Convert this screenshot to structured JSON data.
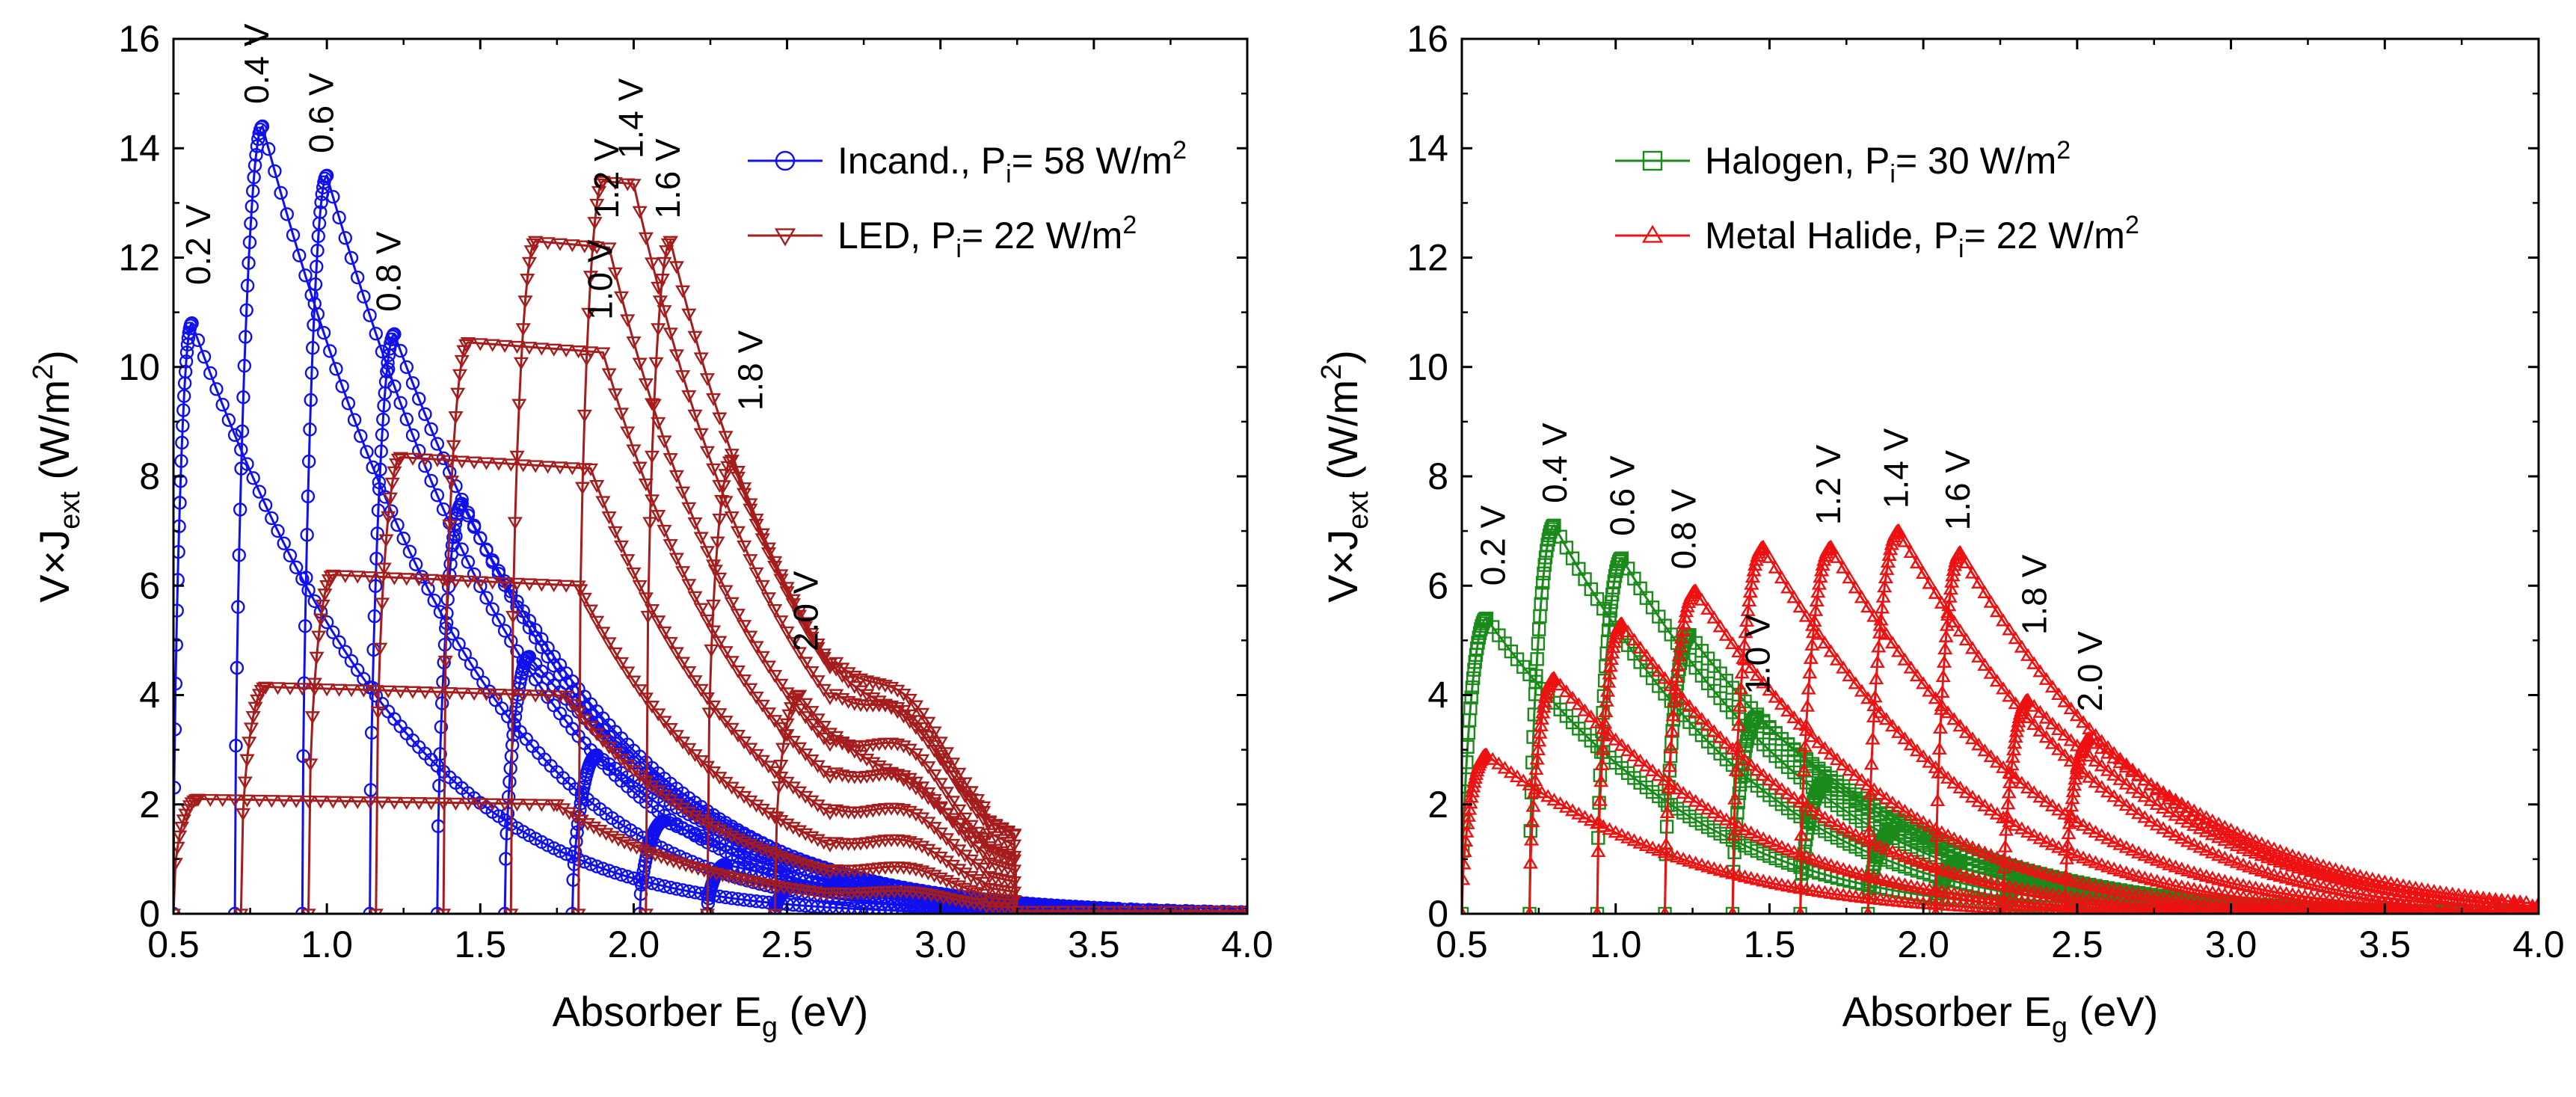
{
  "chart_data": [
    {
      "type": "line",
      "panel": "left",
      "xlabel": "Absorber E",
      "xlabel_sub": "g",
      "xlabel_tail": " (eV)",
      "ylabel": "V×J",
      "ylabel_sub": "ext",
      "ylabel_tail": " (W/m",
      "ylabel_sup": "2",
      "ylabel_close": ")",
      "xlim": [
        0.5,
        4.0
      ],
      "ylim": [
        0,
        16
      ],
      "x_ticks": [
        "0.5",
        "1.0",
        "1.5",
        "2.0",
        "2.5",
        "3.0",
        "3.5",
        "4.0"
      ],
      "y_ticks": [
        "0",
        "2",
        "4",
        "6",
        "8",
        "10",
        "12",
        "14",
        "16"
      ],
      "legend_position": "top-right",
      "series": [
        {
          "name": "Incand., P",
          "name_sub": "i",
          "name_tail": "= 58 W/m",
          "name_sup": "2",
          "color": "#1010ee",
          "marker": "circle",
          "curves": [
            {
              "voltage": 0.2,
              "onset": 0.5,
              "peak_x": 0.56,
              "peak_y": 10.8
            },
            {
              "voltage": 0.4,
              "onset": 0.7,
              "peak_x": 0.79,
              "peak_y": 14.4
            },
            {
              "voltage": 0.6,
              "onset": 0.92,
              "peak_x": 1.0,
              "peak_y": 13.5
            },
            {
              "voltage": 0.8,
              "onset": 1.14,
              "peak_x": 1.22,
              "peak_y": 10.6
            },
            {
              "voltage": 1.0,
              "onset": 1.36,
              "peak_x": 1.44,
              "peak_y": 7.5
            },
            {
              "voltage": 1.2,
              "onset": 1.58,
              "peak_x": 1.66,
              "peak_y": 4.7
            },
            {
              "voltage": 1.4,
              "onset": 1.8,
              "peak_x": 1.88,
              "peak_y": 2.9
            },
            {
              "voltage": 1.6,
              "onset": 2.02,
              "peak_x": 2.1,
              "peak_y": 1.7
            },
            {
              "voltage": 1.8,
              "onset": 2.24,
              "peak_x": 2.3,
              "peak_y": 0.9
            },
            {
              "voltage": 2.0,
              "onset": 2.46,
              "peak_x": 2.52,
              "peak_y": 0.5
            }
          ]
        },
        {
          "name": "LED, P",
          "name_sub": "i",
          "name_tail": "= 22 W/m",
          "name_sup": "2",
          "color": "#a51c1c",
          "marker": "triangle-down",
          "curves": [
            {
              "voltage": 0.2,
              "onset": 0.5,
              "plateau": 2.1,
              "plateau_end": 1.75
            },
            {
              "voltage": 0.4,
              "onset": 0.72,
              "plateau": 4.15,
              "plateau_end": 1.78
            },
            {
              "voltage": 0.6,
              "onset": 0.94,
              "plateau": 6.2,
              "plateau_end": 1.82
            },
            {
              "voltage": 0.8,
              "onset": 1.16,
              "plateau": 8.35,
              "plateau_end": 1.86
            },
            {
              "voltage": 1.0,
              "onset": 1.38,
              "plateau": 10.45,
              "plateau_end": 1.9
            },
            {
              "voltage": 1.2,
              "onset": 1.6,
              "plateau": 12.3,
              "plateau_end": 1.92
            },
            {
              "voltage": 1.4,
              "onset": 1.82,
              "plateau": 13.4,
              "plateau_end": 2.0
            },
            {
              "voltage": 1.6,
              "onset": 2.04,
              "plateau": 12.3,
              "plateau_end": 2.12
            },
            {
              "voltage": 1.8,
              "onset": 2.24,
              "plateau": 8.3,
              "plateau_end": 2.32
            },
            {
              "voltage": 2.0,
              "onset": 2.46,
              "plateau": 4.0,
              "plateau_end": 2.54
            }
          ]
        }
      ],
      "annotations": [
        "0.2 V",
        "0.4 V",
        "0.6 V",
        "0.8 V",
        "1.0 V",
        "1.2 V",
        "1.4 V",
        "1.6 V",
        "1.8 V",
        "2.0 V"
      ]
    },
    {
      "type": "line",
      "panel": "right",
      "xlabel": "Absorber E",
      "xlabel_sub": "g",
      "xlabel_tail": " (eV)",
      "ylabel": "V×J",
      "ylabel_sub": "ext",
      "ylabel_tail": " (W/m",
      "ylabel_sup": "2",
      "ylabel_close": ")",
      "xlim": [
        0.5,
        4.0
      ],
      "ylim": [
        0,
        16
      ],
      "x_ticks": [
        "0.5",
        "1.0",
        "1.5",
        "2.0",
        "2.5",
        "3.0",
        "3.5",
        "4.0"
      ],
      "y_ticks": [
        "0",
        "2",
        "4",
        "6",
        "8",
        "10",
        "12",
        "14",
        "16"
      ],
      "legend_position": "top-right",
      "series": [
        {
          "name": "Halogen, P",
          "name_sub": "i",
          "name_tail": "= 30 W/m",
          "name_sup": "2",
          "color": "#1a8a1a",
          "marker": "square",
          "curves": [
            {
              "voltage": 0.2,
              "onset": 0.5,
              "peak_x": 0.58,
              "peak_y": 5.4
            },
            {
              "voltage": 0.4,
              "onset": 0.72,
              "peak_x": 0.8,
              "peak_y": 7.1
            },
            {
              "voltage": 0.6,
              "onset": 0.94,
              "peak_x": 1.02,
              "peak_y": 6.5
            },
            {
              "voltage": 0.8,
              "onset": 1.16,
              "peak_x": 1.24,
              "peak_y": 5.1
            },
            {
              "voltage": 1.0,
              "onset": 1.38,
              "peak_x": 1.46,
              "peak_y": 3.6
            },
            {
              "voltage": 1.2,
              "onset": 1.6,
              "peak_x": 1.68,
              "peak_y": 2.4
            },
            {
              "voltage": 1.4,
              "onset": 1.82,
              "peak_x": 1.9,
              "peak_y": 1.5
            },
            {
              "voltage": 1.6,
              "onset": 2.04,
              "peak_x": 2.12,
              "peak_y": 0.95
            },
            {
              "voltage": 1.8,
              "onset": 2.26,
              "peak_x": 2.33,
              "peak_y": 0.6
            },
            {
              "voltage": 2.0,
              "onset": 2.48,
              "peak_x": 2.54,
              "peak_y": 0.35
            }
          ]
        },
        {
          "name": "Metal Halide, P",
          "name_sub": "i",
          "name_tail": "= 22 W/m",
          "name_sup": "2",
          "color": "#ee1111",
          "marker": "triangle-up",
          "curves": [
            {
              "voltage": 0.2,
              "onset": 0.5,
              "peak_x": 0.58,
              "peak_y": 2.9
            },
            {
              "voltage": 0.4,
              "onset": 0.72,
              "peak_x": 0.8,
              "peak_y": 4.3
            },
            {
              "voltage": 0.6,
              "onset": 0.94,
              "peak_x": 1.02,
              "peak_y": 5.3
            },
            {
              "voltage": 0.8,
              "onset": 1.16,
              "peak_x": 1.26,
              "peak_y": 5.9
            },
            {
              "voltage": 1.0,
              "onset": 1.38,
              "peak_x": 1.48,
              "peak_y": 6.7
            },
            {
              "voltage": 1.2,
              "onset": 1.6,
              "peak_x": 1.7,
              "peak_y": 6.7
            },
            {
              "voltage": 1.4,
              "onset": 1.82,
              "peak_x": 1.92,
              "peak_y": 7.0
            },
            {
              "voltage": 1.6,
              "onset": 2.04,
              "peak_x": 2.12,
              "peak_y": 6.6
            },
            {
              "voltage": 1.8,
              "onset": 2.26,
              "peak_x": 2.34,
              "peak_y": 3.9
            },
            {
              "voltage": 2.0,
              "onset": 2.46,
              "peak_x": 2.54,
              "peak_y": 3.2
            }
          ]
        }
      ],
      "annotations": [
        "0.2 V",
        "0.4 V",
        "0.6 V",
        "0.8 V",
        "1.0 V",
        "1.2 V",
        "1.4 V",
        "1.6 V",
        "1.8 V",
        "2.0 V"
      ]
    }
  ]
}
